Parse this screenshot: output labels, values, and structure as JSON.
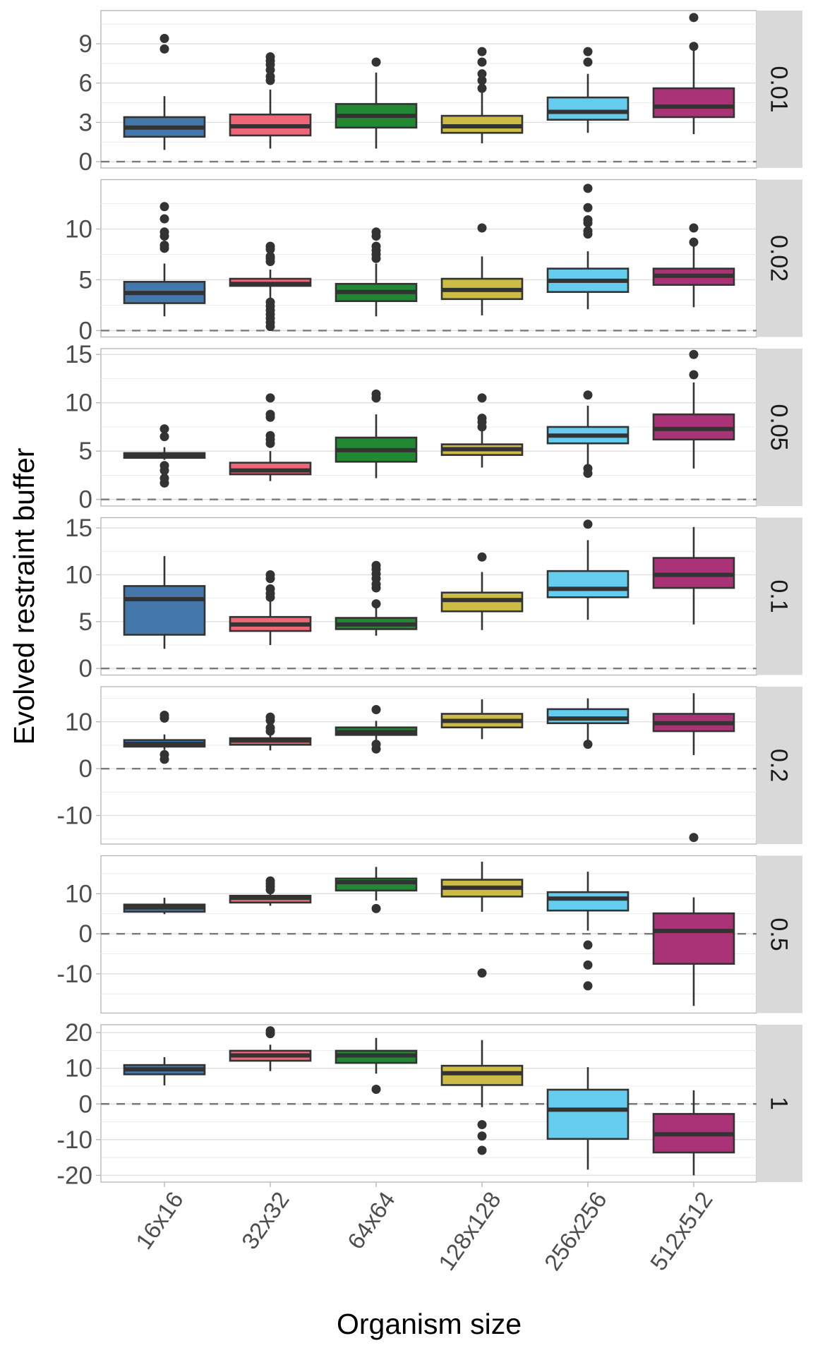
{
  "chart_data": {
    "type": "boxplot",
    "xlabel": "Organism size",
    "ylabel": "Evolved restraint buffer",
    "categories": [
      "16x16",
      "32x32",
      "64x64",
      "128x128",
      "256x256",
      "512x512"
    ],
    "colors": [
      "#4477AA",
      "#EE6677",
      "#228833",
      "#CCBB44",
      "#66CCEE",
      "#AA3377"
    ],
    "reference_line": {
      "y": 0,
      "style": "dashed",
      "color": "#7a7a7a"
    },
    "facet_label_position": "right",
    "grid": true,
    "panels": [
      {
        "label": "0.01",
        "ylim": [
          -0.48,
          11.53
        ],
        "yticks": [
          0,
          3,
          6,
          9
        ],
        "ytick_labels": [
          "0",
          "3",
          "6",
          "9"
        ],
        "boxes": [
          {
            "q1": 1.9,
            "median": 2.6,
            "q3": 3.4,
            "lower": 0.9,
            "upper": 5.0,
            "outliers": [
              8.6,
              9.4
            ]
          },
          {
            "q1": 2.0,
            "median": 2.7,
            "q3": 3.6,
            "lower": 1.0,
            "upper": 5.5,
            "outliers": [
              6.2,
              6.5,
              7.0,
              7.4,
              7.7,
              8.0
            ]
          },
          {
            "q1": 2.6,
            "median": 3.5,
            "q3": 4.4,
            "lower": 1.0,
            "upper": 6.8,
            "outliers": [
              7.6
            ]
          },
          {
            "q1": 2.2,
            "median": 2.7,
            "q3": 3.5,
            "lower": 1.4,
            "upper": 5.4,
            "outliers": [
              5.6,
              6.2,
              6.7,
              7.6,
              8.4
            ]
          },
          {
            "q1": 3.2,
            "median": 3.8,
            "q3": 4.9,
            "lower": 2.2,
            "upper": 6.7,
            "outliers": [
              7.6,
              8.4
            ]
          },
          {
            "q1": 3.4,
            "median": 4.2,
            "q3": 5.6,
            "lower": 2.1,
            "upper": 8.8,
            "outliers": [
              8.8,
              11.0
            ]
          }
        ]
      },
      {
        "label": "0.02",
        "ylim": [
          -0.63,
          14.86
        ],
        "yticks": [
          0,
          5,
          10
        ],
        "ytick_labels": [
          "0",
          "5",
          "10"
        ],
        "boxes": [
          {
            "q1": 2.7,
            "median": 3.7,
            "q3": 4.8,
            "lower": 1.4,
            "upper": 6.6,
            "outliers": [
              8.1,
              8.4,
              9.3,
              9.7,
              11.0,
              12.2
            ]
          },
          {
            "q1": 4.4,
            "median": 4.6,
            "q3": 5.1,
            "lower": 2.9,
            "upper": 6.0,
            "outliers": [
              0.4,
              0.8,
              1.2,
              1.6,
              2.0,
              2.4,
              2.8,
              6.8,
              7.1,
              7.3,
              8.0,
              8.3
            ]
          },
          {
            "q1": 2.9,
            "median": 3.8,
            "q3": 4.6,
            "lower": 1.4,
            "upper": 6.6,
            "outliers": [
              7.1,
              7.5,
              7.9,
              8.3,
              9.3,
              9.7
            ]
          },
          {
            "q1": 3.1,
            "median": 4.0,
            "q3": 5.1,
            "lower": 1.5,
            "upper": 7.3,
            "outliers": [
              10.1
            ]
          },
          {
            "q1": 3.8,
            "median": 4.9,
            "q3": 6.1,
            "lower": 2.1,
            "upper": 7.8,
            "outliers": [
              9.5,
              9.8,
              10.6,
              10.9,
              12.1,
              14.0
            ]
          },
          {
            "q1": 4.5,
            "median": 5.4,
            "q3": 6.1,
            "lower": 2.3,
            "upper": 8.3,
            "outliers": [
              8.7,
              10.1
            ]
          }
        ]
      },
      {
        "label": "0.05",
        "ylim": [
          -0.68,
          15.6
        ],
        "yticks": [
          0,
          5,
          10,
          15
        ],
        "ytick_labels": [
          "0",
          "5",
          "10",
          "15"
        ],
        "boxes": [
          {
            "q1": 4.3,
            "median": 4.5,
            "q3": 4.8,
            "lower": 4.1,
            "upper": 5.4,
            "outliers": [
              1.7,
              2.2,
              3.0,
              3.5,
              6.5,
              7.3
            ]
          },
          {
            "q1": 2.6,
            "median": 3.0,
            "q3": 3.8,
            "lower": 1.9,
            "upper": 5.0,
            "outliers": [
              5.8,
              6.2,
              6.6,
              8.5,
              8.8,
              10.5
            ]
          },
          {
            "q1": 3.9,
            "median": 5.1,
            "q3": 6.4,
            "lower": 2.2,
            "upper": 8.8,
            "outliers": [
              10.5,
              10.9
            ]
          },
          {
            "q1": 4.6,
            "median": 5.2,
            "q3": 5.7,
            "lower": 3.3,
            "upper": 7.3,
            "outliers": [
              7.5,
              8.0,
              8.4,
              10.5
            ]
          },
          {
            "q1": 5.8,
            "median": 6.6,
            "q3": 7.5,
            "lower": 3.6,
            "upper": 9.7,
            "outliers": [
              2.7,
              3.2,
              10.8
            ]
          },
          {
            "q1": 6.2,
            "median": 7.3,
            "q3": 8.8,
            "lower": 3.2,
            "upper": 12.1,
            "outliers": [
              12.9,
              15.0
            ]
          }
        ]
      },
      {
        "label": "0.1",
        "ylim": [
          -0.7,
          16.1
        ],
        "yticks": [
          0,
          5,
          10,
          15
        ],
        "ytick_labels": [
          "0",
          "5",
          "10",
          "15"
        ],
        "boxes": [
          {
            "q1": 3.6,
            "median": 7.4,
            "q3": 8.8,
            "lower": 2.1,
            "upper": 12.0,
            "outliers": []
          },
          {
            "q1": 4.0,
            "median": 4.7,
            "q3": 5.5,
            "lower": 2.5,
            "upper": 7.3,
            "outliers": [
              7.6,
              8.0,
              8.5,
              9.6,
              10.0
            ]
          },
          {
            "q1": 4.2,
            "median": 4.7,
            "q3": 5.4,
            "lower": 3.5,
            "upper": 6.5,
            "outliers": [
              6.9,
              8.6,
              9.0,
              9.6,
              10.1,
              10.6,
              11.0
            ]
          },
          {
            "q1": 6.1,
            "median": 7.3,
            "q3": 8.1,
            "lower": 4.1,
            "upper": 10.3,
            "outliers": [
              11.9
            ]
          },
          {
            "q1": 7.6,
            "median": 8.5,
            "q3": 10.4,
            "lower": 5.2,
            "upper": 13.7,
            "outliers": [
              15.4
            ]
          },
          {
            "q1": 8.6,
            "median": 10.0,
            "q3": 11.8,
            "lower": 4.7,
            "upper": 15.1,
            "outliers": []
          }
        ]
      },
      {
        "label": "0.2",
        "ylim": [
          -16.1,
          17.5
        ],
        "yticks": [
          -10,
          0,
          10
        ],
        "ytick_labels": [
          "-10",
          "0",
          "10"
        ],
        "boxes": [
          {
            "q1": 4.7,
            "median": 5.3,
            "q3": 6.1,
            "lower": 4.0,
            "upper": 7.3,
            "outliers": [
              2.0,
              3.0,
              10.8,
              11.4
            ]
          },
          {
            "q1": 5.1,
            "median": 6.0,
            "q3": 6.5,
            "lower": 3.9,
            "upper": 7.3,
            "outliers": [
              8.0,
              8.7,
              10.3,
              11.0
            ]
          },
          {
            "q1": 7.2,
            "median": 7.8,
            "q3": 8.8,
            "lower": 6.1,
            "upper": 10.2,
            "outliers": [
              4.2,
              5.2,
              12.6
            ]
          },
          {
            "q1": 8.8,
            "median": 10.2,
            "q3": 11.7,
            "lower": 6.3,
            "upper": 14.8,
            "outliers": []
          },
          {
            "q1": 9.7,
            "median": 10.7,
            "q3": 12.7,
            "lower": 5.5,
            "upper": 15.0,
            "outliers": [
              5.2
            ]
          },
          {
            "q1": 8.0,
            "median": 9.7,
            "q3": 11.7,
            "lower": 2.9,
            "upper": 16.1,
            "outliers": [
              -14.7
            ]
          }
        ]
      },
      {
        "label": "0.5",
        "ylim": [
          -19.8,
          19.5
        ],
        "yticks": [
          -10,
          0,
          10
        ],
        "ytick_labels": [
          "-10",
          "0",
          "10"
        ],
        "boxes": [
          {
            "q1": 5.5,
            "median": 6.6,
            "q3": 7.3,
            "lower": 4.9,
            "upper": 9.0,
            "outliers": []
          },
          {
            "q1": 7.8,
            "median": 9.0,
            "q3": 9.5,
            "lower": 7.0,
            "upper": 10.5,
            "outliers": [
              11.0,
              11.8,
              12.5,
              13.2
            ]
          },
          {
            "q1": 10.8,
            "median": 12.9,
            "q3": 13.8,
            "lower": 8.3,
            "upper": 16.7,
            "outliers": [
              6.3
            ]
          },
          {
            "q1": 9.3,
            "median": 11.5,
            "q3": 13.5,
            "lower": 5.5,
            "upper": 18.0,
            "outliers": [
              -9.8
            ]
          },
          {
            "q1": 5.8,
            "median": 8.8,
            "q3": 10.4,
            "lower": 0.8,
            "upper": 15.5,
            "outliers": [
              -2.8,
              -7.8,
              -13.0
            ]
          },
          {
            "q1": -7.5,
            "median": 0.7,
            "q3": 5.1,
            "lower": -18.0,
            "upper": 9.1,
            "outliers": []
          }
        ]
      },
      {
        "label": "1",
        "ylim": [
          -21.9,
          22.2
        ],
        "yticks": [
          -20,
          -10,
          0,
          10,
          20
        ],
        "ytick_labels": [
          "-20",
          "-10",
          "0",
          "10",
          "20"
        ],
        "boxes": [
          {
            "q1": 8.3,
            "median": 9.7,
            "q3": 10.9,
            "lower": 5.2,
            "upper": 13.1,
            "outliers": []
          },
          {
            "q1": 12.1,
            "median": 13.6,
            "q3": 14.9,
            "lower": 9.2,
            "upper": 16.6,
            "outliers": [
              19.7,
              20.5
            ]
          },
          {
            "q1": 11.5,
            "median": 13.6,
            "q3": 14.9,
            "lower": 8.5,
            "upper": 18.5,
            "outliers": [
              4.1
            ]
          },
          {
            "q1": 5.3,
            "median": 8.6,
            "q3": 10.7,
            "lower": -0.9,
            "upper": 17.9,
            "outliers": [
              -5.8,
              -9.0,
              -13.0
            ]
          },
          {
            "q1": -9.8,
            "median": -1.6,
            "q3": 4.0,
            "lower": -18.4,
            "upper": 10.3,
            "outliers": []
          },
          {
            "q1": -13.6,
            "median": -8.5,
            "q3": -2.8,
            "lower": -20.0,
            "upper": 3.8,
            "outliers": []
          }
        ]
      }
    ]
  }
}
